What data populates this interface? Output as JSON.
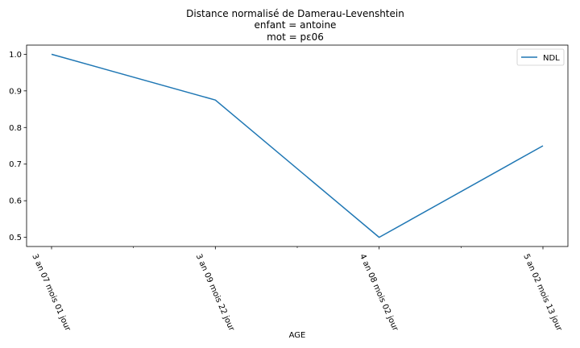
{
  "chart_data": {
    "type": "line",
    "title_lines": [
      "Distance normalisé de Damerau-Levenshtein",
      "enfant = antoine",
      "mot = pɛ06"
    ],
    "xlabel": "AGE",
    "ylabel": "",
    "categories": [
      "3 an 07 mois 01 jour",
      "3 an 09 mois 22 jour",
      "4 an 08 mois 02 jour",
      "5 an 02 mois 13 jour"
    ],
    "series": [
      {
        "name": "NDL",
        "values": [
          1.0,
          0.875,
          0.5,
          0.75
        ]
      }
    ],
    "ylim": [
      0.475,
      1.025
    ],
    "yticks": [
      "0.5",
      "0.6",
      "0.7",
      "0.8",
      "0.9",
      "1.0"
    ],
    "legend": "top-right",
    "grid": false,
    "colors": {
      "line": "#1f77b4",
      "axis": "#000000"
    }
  }
}
